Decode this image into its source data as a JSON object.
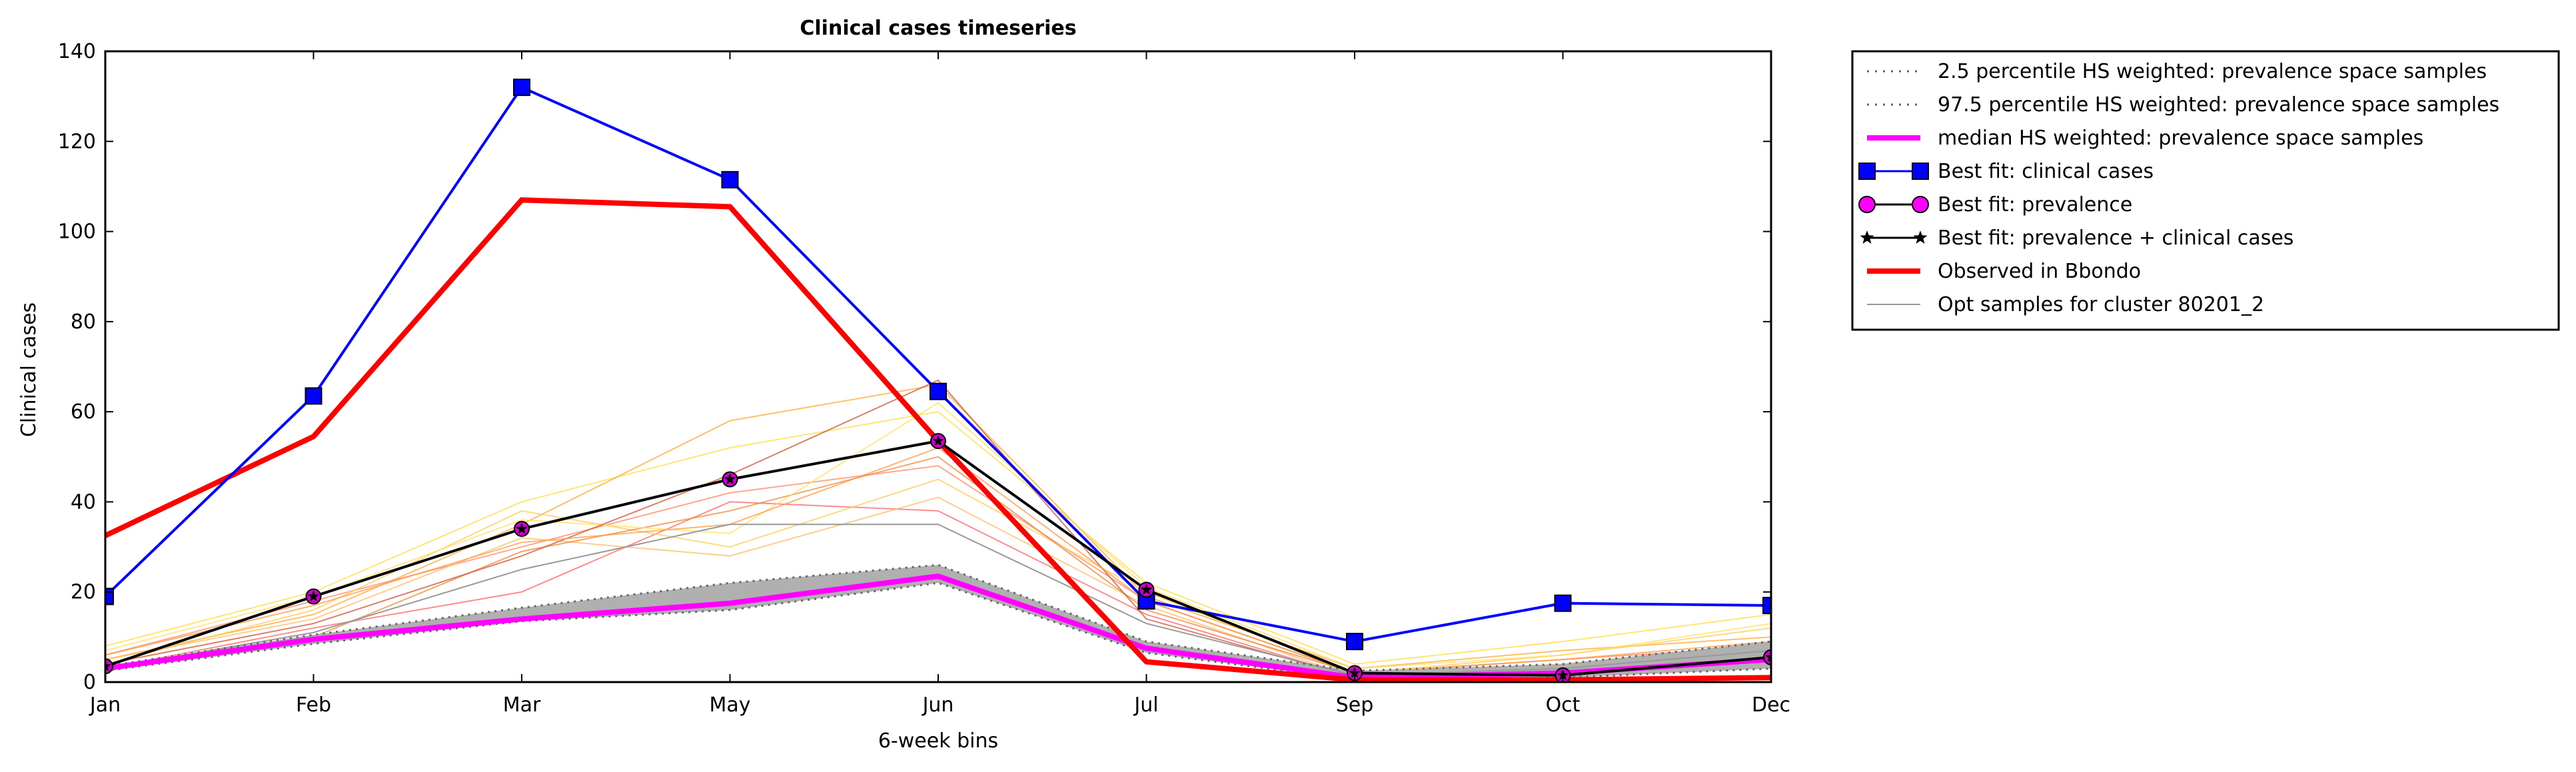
{
  "chart_data": {
    "type": "line",
    "title": "Clinical cases timeseries",
    "xlabel": "6-week bins",
    "ylabel": "Clinical cases",
    "categories": [
      "Jan",
      "Feb",
      "Mar",
      "May",
      "Jun",
      "Jul",
      "Sep",
      "Oct",
      "Dec"
    ],
    "ylim": [
      0,
      140
    ],
    "yticks": [
      0,
      20,
      40,
      60,
      80,
      100,
      120,
      140
    ],
    "grid": false,
    "legend_position": "outside-right",
    "band": {
      "lower": [
        2.5,
        8.5,
        13.5,
        16,
        22,
        6.5,
        0.5,
        1,
        3
      ],
      "upper": [
        3.5,
        10.5,
        16.5,
        22,
        26,
        9,
        2.5,
        4,
        9
      ],
      "fill": "#b0b0b0"
    },
    "series": [
      {
        "name": "2.5 percentile HS weighted: prevalence space samples",
        "style": "dotted",
        "color": "#666666",
        "values": [
          2.5,
          8.5,
          13.5,
          16,
          22,
          6.5,
          0.5,
          1,
          3
        ]
      },
      {
        "name": "97.5 percentile HS weighted: prevalence space samples",
        "style": "dotted",
        "color": "#666666",
        "values": [
          3.5,
          10.5,
          16.5,
          22,
          26,
          9,
          2.5,
          4,
          9
        ]
      },
      {
        "name": "median HS weighted: prevalence space samples",
        "style": "thick",
        "color": "#ff00ff",
        "values": [
          3,
          9.5,
          14,
          17.5,
          23.5,
          7.5,
          1,
          2,
          5
        ]
      },
      {
        "name": "Best fit: clinical cases",
        "style": "square-marker",
        "color": "#0000ff",
        "values": [
          19,
          63.5,
          132,
          111.5,
          64.5,
          18,
          9,
          17.5,
          17
        ]
      },
      {
        "name": "Best fit: prevalence",
        "style": "circle-marker",
        "color": "#ff00ff",
        "values": [
          3.5,
          19,
          34,
          45,
          53.5,
          20.5,
          2,
          1.5,
          5.5
        ]
      },
      {
        "name": "Best fit: prevalence + clinical cases",
        "style": "star-marker",
        "color": "#000000",
        "values": [
          3.5,
          19,
          34,
          45,
          53.5,
          20.5,
          2,
          1.5,
          5.5
        ]
      },
      {
        "name": "Observed in Bbondo",
        "style": "thick",
        "color": "#ff0000",
        "values": [
          32.5,
          54.5,
          107,
          105.5,
          53.5,
          4.5,
          0.5,
          0.5,
          1
        ]
      },
      {
        "name": "Opt samples for cluster 80201_2",
        "style": "thin",
        "color": "#999999",
        "values": [
          3,
          11,
          25,
          35,
          35,
          13,
          1.5,
          3,
          7
        ]
      }
    ],
    "samples": [
      {
        "color": "#ffdd44",
        "values": [
          8,
          20,
          40,
          52,
          60,
          22,
          4,
          9,
          15
        ]
      },
      {
        "color": "#ffaa33",
        "values": [
          5,
          15,
          35,
          58,
          66,
          19,
          3,
          7,
          10
        ]
      },
      {
        "color": "#ff8866",
        "values": [
          6,
          18,
          30,
          42,
          48,
          18,
          2,
          5,
          8
        ]
      },
      {
        "color": "#ff6666",
        "values": [
          3,
          12,
          20,
          40,
          38,
          15,
          1,
          3,
          6
        ]
      },
      {
        "color": "#ffcc55",
        "values": [
          4,
          16,
          38,
          30,
          45,
          20,
          2,
          6,
          12
        ]
      },
      {
        "color": "#ffbb66",
        "values": [
          5,
          14,
          32,
          28,
          41,
          17,
          1,
          4,
          8
        ]
      },
      {
        "color": "#ee8833",
        "values": [
          3,
          10,
          29,
          38,
          50,
          16,
          2,
          3,
          5
        ]
      },
      {
        "color": "#ffe066",
        "values": [
          7,
          19,
          36,
          33,
          62,
          21,
          3,
          6,
          13
        ]
      },
      {
        "color": "#cc5533",
        "values": [
          4,
          13,
          28,
          46,
          67,
          14,
          1,
          2,
          4
        ]
      },
      {
        "color": "#ff9944",
        "values": [
          6,
          17,
          31,
          35,
          52,
          18,
          2,
          5,
          9
        ]
      }
    ]
  }
}
